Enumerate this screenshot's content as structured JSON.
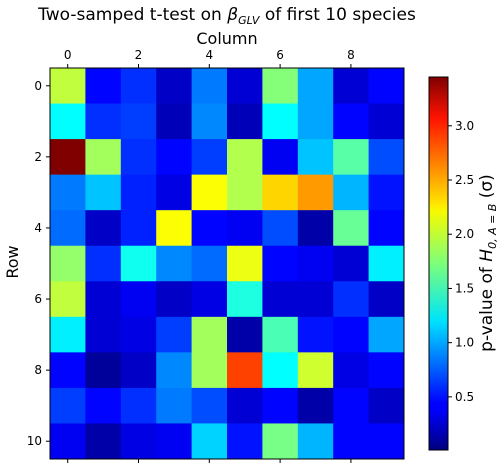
{
  "chart_data": {
    "type": "heatmap",
    "title_prefix": "Two-samped t-test on ",
    "title_symbol": "β",
    "title_subscript": "GLV",
    "title_suffix": " of first 10 species",
    "xlabel": "Column",
    "ylabel": "Row",
    "colorbar_label_prefix": "p-value of ",
    "colorbar_label_symbol": "H",
    "colorbar_label_subscript": "0, A = B",
    "colorbar_label_suffix": " (σ)",
    "colormap": "jet",
    "x_ticks": [
      0,
      2,
      4,
      6,
      8
    ],
    "y_ticks": [
      0,
      2,
      4,
      6,
      8,
      10
    ],
    "colorbar_ticks": [
      0.5,
      1.0,
      1.5,
      2.0,
      2.5,
      3.0
    ],
    "colorbar_tick_labels": [
      "0.5",
      "1.0",
      "1.5",
      "2.0",
      "2.5",
      "3.0"
    ],
    "vmin": 0.01,
    "vmax": 3.45,
    "values": [
      [
        1.95,
        0.45,
        0.6,
        0.25,
        0.85,
        0.3,
        1.75,
        1.0,
        0.3,
        0.45
      ],
      [
        1.3,
        0.6,
        0.65,
        0.2,
        0.9,
        0.2,
        1.3,
        1.0,
        0.45,
        0.3
      ],
      [
        3.45,
        1.85,
        0.6,
        0.45,
        0.65,
        1.9,
        0.4,
        1.1,
        1.6,
        0.7
      ],
      [
        0.85,
        1.1,
        0.55,
        0.35,
        2.15,
        1.9,
        2.3,
        2.5,
        1.05,
        0.5
      ],
      [
        0.8,
        0.25,
        0.55,
        2.15,
        0.45,
        0.4,
        0.7,
        0.15,
        1.65,
        0.45
      ],
      [
        1.8,
        0.6,
        1.35,
        0.9,
        0.8,
        2.1,
        0.45,
        0.4,
        0.3,
        1.25
      ],
      [
        1.95,
        0.3,
        0.4,
        0.25,
        0.35,
        1.4,
        0.3,
        0.3,
        0.6,
        0.25
      ],
      [
        1.25,
        0.3,
        0.35,
        0.65,
        1.85,
        0.15,
        1.55,
        0.5,
        0.45,
        1.0
      ],
      [
        0.45,
        0.1,
        0.25,
        0.9,
        1.85,
        2.8,
        1.3,
        2.0,
        0.35,
        0.45
      ],
      [
        0.65,
        0.45,
        0.6,
        0.85,
        0.7,
        0.3,
        0.45,
        0.15,
        0.45,
        0.25
      ],
      [
        0.4,
        0.15,
        0.35,
        0.4,
        1.15,
        0.5,
        1.7,
        1.05,
        0.45,
        0.45
      ]
    ]
  }
}
